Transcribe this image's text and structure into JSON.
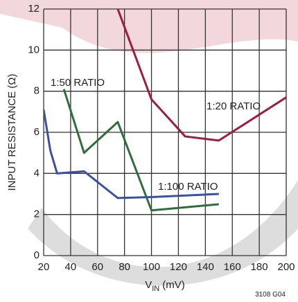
{
  "chart_data": {
    "type": "line",
    "ylabel": "INPUT RESISTANCE (Ω)",
    "xlabel": {
      "text": "V",
      "subscript": "IN",
      "suffix": "(mV)"
    },
    "footnote": "3108 G04",
    "xlim": [
      20,
      200
    ],
    "xticks": [
      20,
      40,
      60,
      80,
      100,
      120,
      140,
      160,
      180,
      200
    ],
    "ylim": [
      0,
      12
    ],
    "yticks": [
      0,
      2,
      4,
      6,
      8,
      10,
      12
    ],
    "grid": true,
    "series": [
      {
        "name": "1:20 RATIO",
        "color": "#9c1c42",
        "x": [
          75,
          100,
          125,
          150,
          200
        ],
        "values": [
          12,
          7.6,
          5.8,
          5.6,
          7.7
        ]
      },
      {
        "name": "1:50 RATIO",
        "color": "#2f6e3b",
        "x": [
          35,
          50,
          75,
          100,
          150
        ],
        "values": [
          8.1,
          5.0,
          6.5,
          2.2,
          2.5
        ]
      },
      {
        "name": "1:100 RATIO",
        "color": "#3b4fa3",
        "x": [
          20,
          25,
          30,
          50,
          75,
          100,
          150
        ],
        "values": [
          7.1,
          5.1,
          4.0,
          4.1,
          2.8,
          2.85,
          3.0
        ]
      }
    ]
  }
}
